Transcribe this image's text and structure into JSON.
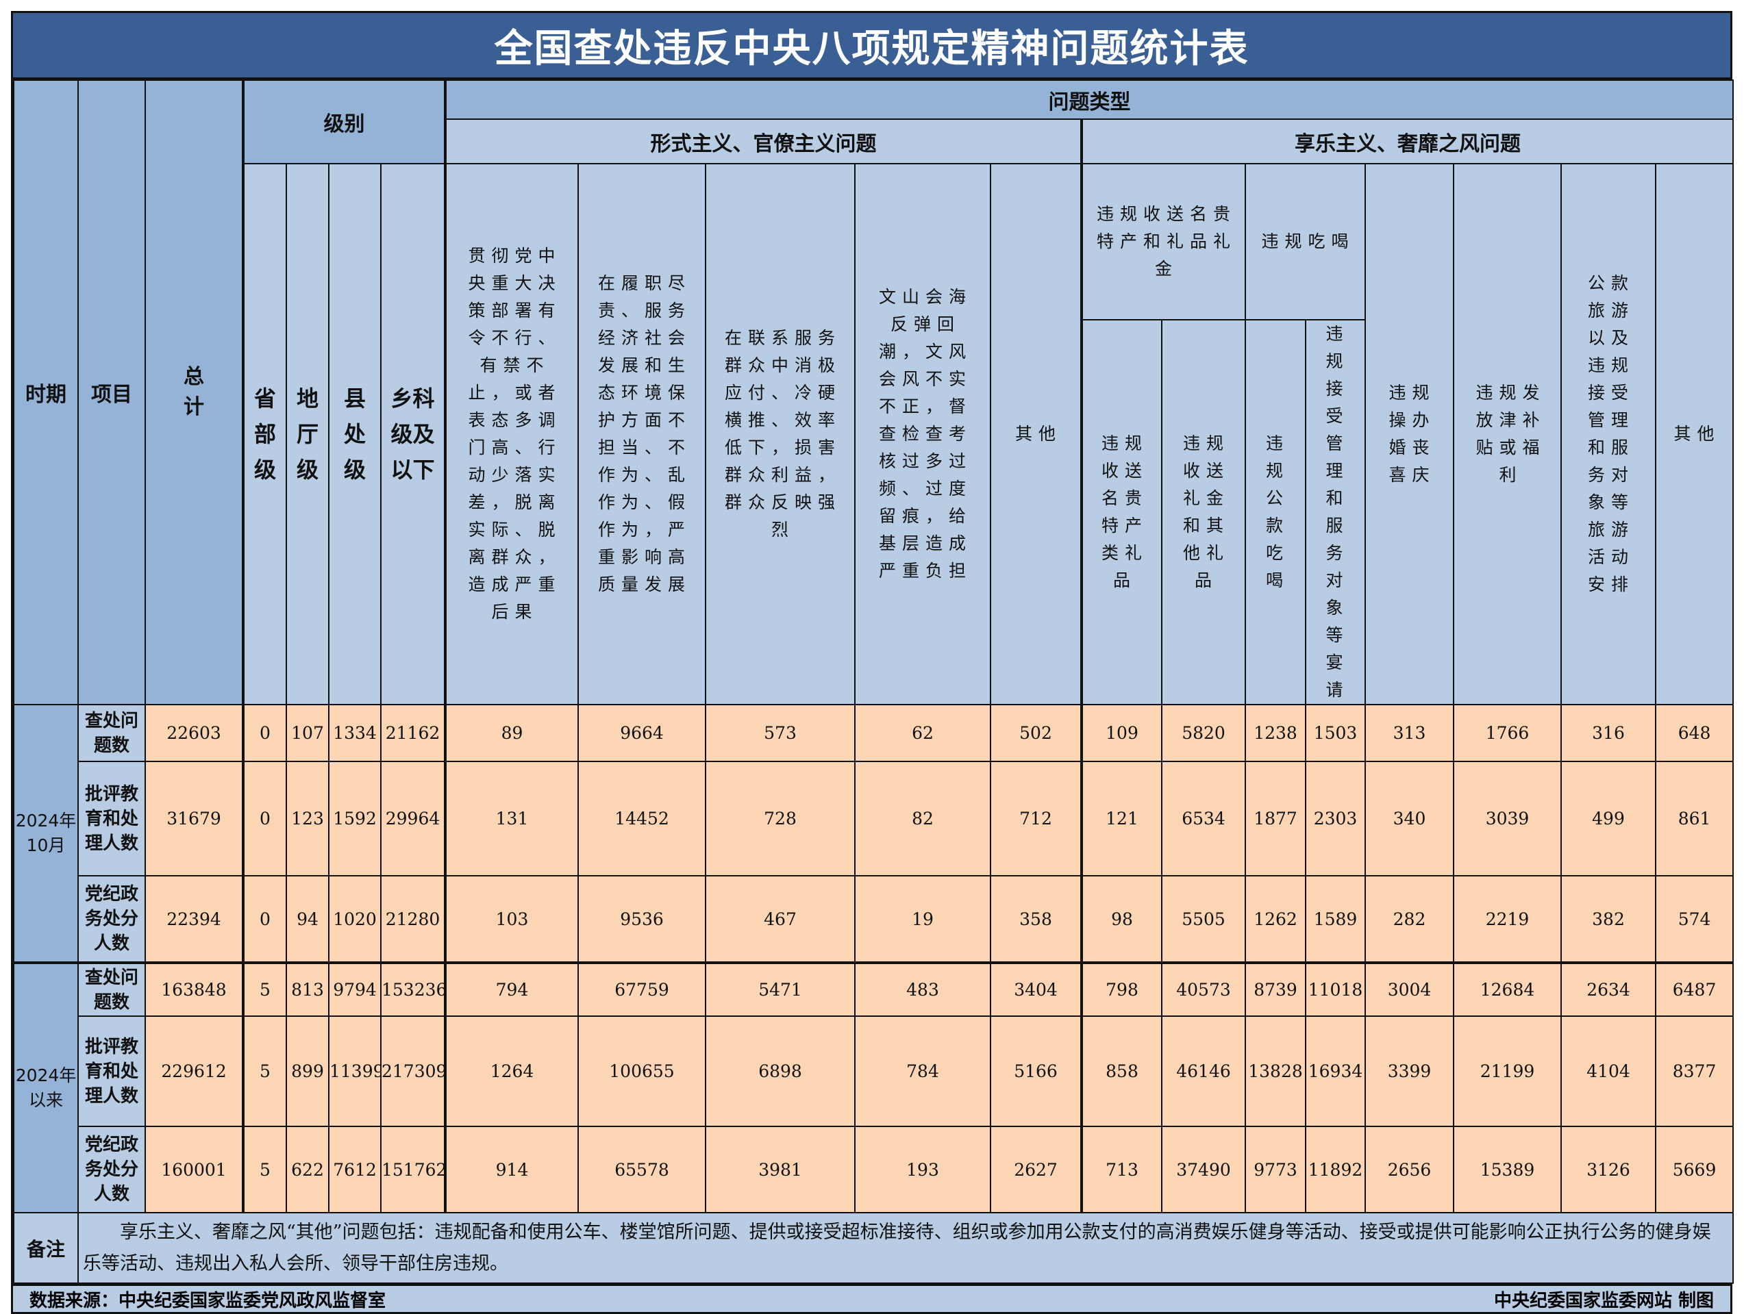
{
  "title": "全国查处违反中央八项规定精神问题统计表",
  "header": {
    "period": "时期",
    "item": "项目",
    "total": "总计",
    "level_group": "级别",
    "levels": [
      "省部级",
      "地厅级",
      "县处级",
      "乡科级及以下"
    ],
    "problem_type": "问题类型",
    "formalism_group": "形式主义、官僚主义问题",
    "formalism": [
      "贯彻党中央重大决策部署有令不行、有禁不止，或者表态多调门高、行动少落实差，脱离实际、脱离群众，造成严重后果",
      "在履职尽责、服务经济社会发展和生态环境保护方面不担当、不作为、乱作为、假作为，严重影响高质量发展",
      "在联系服务群众中消极应付、冷硬横推、效率低下，损害群众利益，群众反映强烈",
      "文山会海反弹回潮，文风会风不实不正，督查检查考核过多过频、过度留痕，给基层造成严重负担",
      "其他"
    ],
    "hedonism_group": "享乐主义、奢靡之风问题",
    "gifts_group": "违规收送名贵特产和礼品礼金",
    "gifts": [
      "违规收送名贵特产类礼品",
      "违规收送礼金和其他礼品"
    ],
    "dining_group": "违规吃喝",
    "dining": [
      "违规公款吃喝",
      "违规接受管理和服务对象等宴请"
    ],
    "hedonism_other": [
      "违规操办婚丧喜庆",
      "违规发放津补贴或福利",
      "公款旅游以及违规接受管理和服务对象等旅游活动安排",
      "其他"
    ]
  },
  "periods": [
    {
      "label": "2024年10月",
      "rows": [
        {
          "item": "查处问题数",
          "values": [
            "22603",
            "0",
            "107",
            "1334",
            "21162",
            "89",
            "9664",
            "573",
            "62",
            "502",
            "109",
            "5820",
            "1238",
            "1503",
            "313",
            "1766",
            "316",
            "648"
          ]
        },
        {
          "item": "批评教育和处理人数",
          "values": [
            "31679",
            "0",
            "123",
            "1592",
            "29964",
            "131",
            "14452",
            "728",
            "82",
            "712",
            "121",
            "6534",
            "1877",
            "2303",
            "340",
            "3039",
            "499",
            "861"
          ]
        },
        {
          "item": "党纪政务处分人数",
          "values": [
            "22394",
            "0",
            "94",
            "1020",
            "21280",
            "103",
            "9536",
            "467",
            "19",
            "358",
            "98",
            "5505",
            "1262",
            "1589",
            "282",
            "2219",
            "382",
            "574"
          ]
        }
      ]
    },
    {
      "label": "2024年以来",
      "rows": [
        {
          "item": "查处问题数",
          "values": [
            "163848",
            "5",
            "813",
            "9794",
            "153236",
            "794",
            "67759",
            "5471",
            "483",
            "3404",
            "798",
            "40573",
            "8739",
            "11018",
            "3004",
            "12684",
            "2634",
            "6487"
          ]
        },
        {
          "item": "批评教育和处理人数",
          "values": [
            "229612",
            "5",
            "899",
            "11399",
            "217309",
            "1264",
            "100655",
            "6898",
            "784",
            "5166",
            "858",
            "46146",
            "13828",
            "16934",
            "3399",
            "21199",
            "4104",
            "8377"
          ]
        },
        {
          "item": "党纪政务处分人数",
          "values": [
            "160001",
            "5",
            "622",
            "7612",
            "151762",
            "914",
            "65578",
            "3981",
            "193",
            "2627",
            "713",
            "37490",
            "9773",
            "11892",
            "2656",
            "15389",
            "3126",
            "5669"
          ]
        }
      ]
    }
  ],
  "notes": {
    "label": "备注",
    "text": "享乐主义、奢靡之风“其他”问题包括：违规配备和使用公车、楼堂馆所问题、提供或接受超标准接待、组织或参加用公款支付的高消费娱乐健身等活动、接受或提供可能影响公正执行公务的健身娱乐等活动、违规出入私人会所、领导干部住房违规。"
  },
  "footer": {
    "source": "数据来源：中央纪委国家监委党风政风监督室",
    "credit": "中央纪委国家监委网站 制图"
  },
  "colors": {
    "title_bg": "#3a5f94",
    "header_dark": "#95b3d7",
    "header_light": "#b8cce4",
    "data_bg": "#fcd5b4"
  }
}
